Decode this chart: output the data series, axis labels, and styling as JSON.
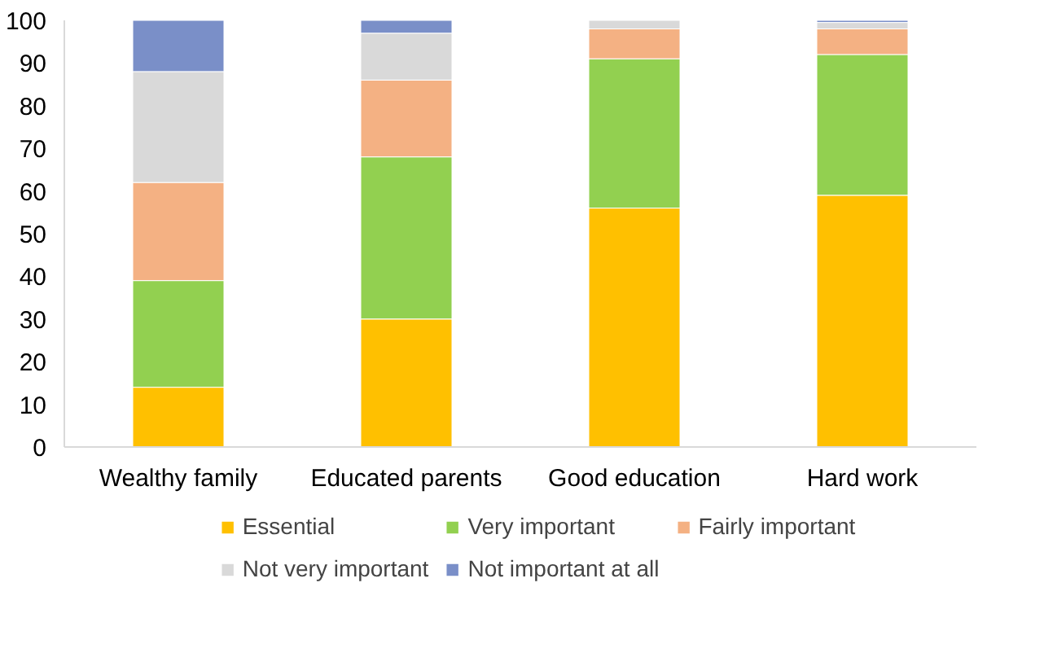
{
  "chart_data": {
    "type": "bar",
    "stacked": true,
    "categories": [
      "Wealthy family",
      "Educated parents",
      "Good education",
      "Hard work"
    ],
    "series": [
      {
        "name": "Essential",
        "color": "#ffc000",
        "values": [
          14,
          30,
          56,
          59
        ]
      },
      {
        "name": "Very important",
        "color": "#92d050",
        "values": [
          25,
          38,
          35,
          33
        ]
      },
      {
        "name": "Fairly important",
        "color": "#f4b183",
        "values": [
          23,
          18,
          7,
          6
        ]
      },
      {
        "name": "Not very important",
        "color": "#d9d9d9",
        "values": [
          26,
          11,
          2,
          1.5
        ]
      },
      {
        "name": "Not important at all",
        "color": "#7a8fc8",
        "values": [
          12,
          3,
          null,
          0.5
        ]
      }
    ],
    "ylim": [
      0,
      100
    ],
    "yticks": [
      0,
      10,
      20,
      30,
      40,
      50,
      60,
      70,
      80,
      90,
      100
    ],
    "grid": false,
    "legend": "bottom"
  }
}
